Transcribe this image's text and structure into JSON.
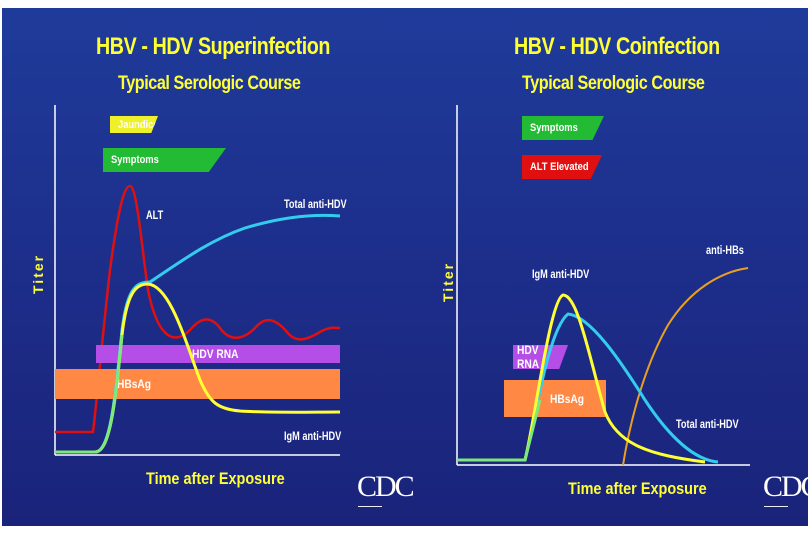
{
  "left": {
    "title": "HBV - HDV Superinfection",
    "subtitle": "Typical Serologic Course",
    "y_axis": "Titer",
    "x_axis": "Time after Exposure",
    "tags": {
      "jaundice": "Jaundice",
      "symptoms": "Symptoms"
    },
    "bars": {
      "hdv_rna": "HDV RNA",
      "hbsag": "HBsAg"
    },
    "curve_labels": {
      "alt": "ALT",
      "total_anti_hdv": "Total anti-HDV",
      "igm_anti_hdv": "IgM anti-HDV"
    },
    "logo": "CDC"
  },
  "right": {
    "title": "HBV - HDV Coinfection",
    "subtitle": "Typical Serologic Course",
    "y_axis": "Titer",
    "x_axis": "Time after Exposure",
    "tags": {
      "symptoms": "Symptoms",
      "alt_elevated": "ALT Elevated"
    },
    "bars": {
      "hdv_rna": "HDV RNA",
      "hbsag": "HBsAg"
    },
    "curve_labels": {
      "igm_anti_hdv": "IgM anti-HDV",
      "anti_hbs": "anti-HBs",
      "total_anti_hdv": "Total anti-HDV"
    },
    "logo": "CDC"
  },
  "colors": {
    "background": "#1d2f8c",
    "title": "#ffff33",
    "alt_red": "#e01010",
    "cyan": "#33ccee",
    "yellow": "#ffff33",
    "green": "#22bb33",
    "purple": "#b44ee6",
    "orange": "#ff8844",
    "anti_hbs_orange": "#e8a020",
    "axis": "#ffffff"
  }
}
